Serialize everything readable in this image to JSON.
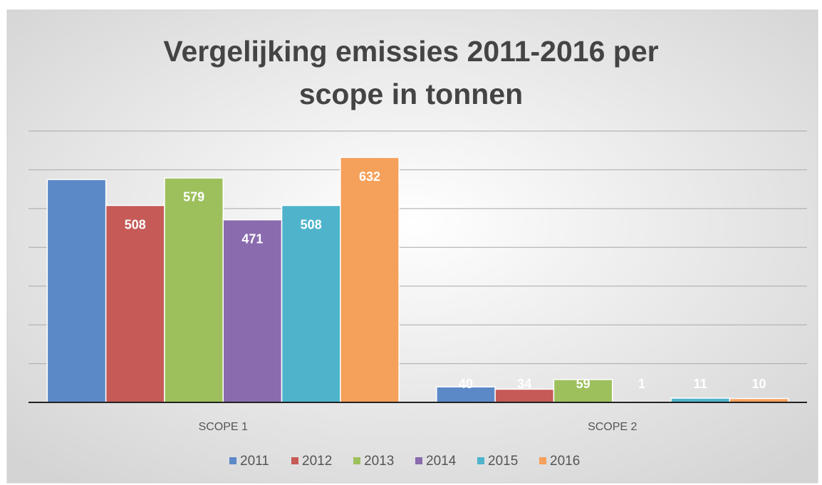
{
  "chart_data": {
    "type": "bar",
    "title": "Vergelijking emissies 2011-2016 per scope in tonnen",
    "categories": [
      "SCOPE 1",
      "SCOPE 2"
    ],
    "series": [
      {
        "name": "2011",
        "color": "#5b89c7",
        "values": [
          575,
          40
        ],
        "value_labels": [
          null,
          "40"
        ]
      },
      {
        "name": "2012",
        "color": "#c55a57",
        "values": [
          508,
          34
        ]
      },
      {
        "name": "2013",
        "color": "#9dc05d",
        "values": [
          579,
          59
        ]
      },
      {
        "name": "2014",
        "color": "#8a6bae",
        "values": [
          471,
          1
        ]
      },
      {
        "name": "2015",
        "color": "#4fb3cc",
        "values": [
          508,
          11
        ]
      },
      {
        "name": "2016",
        "color": "#f5a05b",
        "values": [
          632,
          10
        ]
      }
    ],
    "ylim": [
      0,
      700
    ],
    "yticks": [
      0,
      100,
      200,
      300,
      400,
      500,
      600,
      700
    ],
    "grid": true
  }
}
